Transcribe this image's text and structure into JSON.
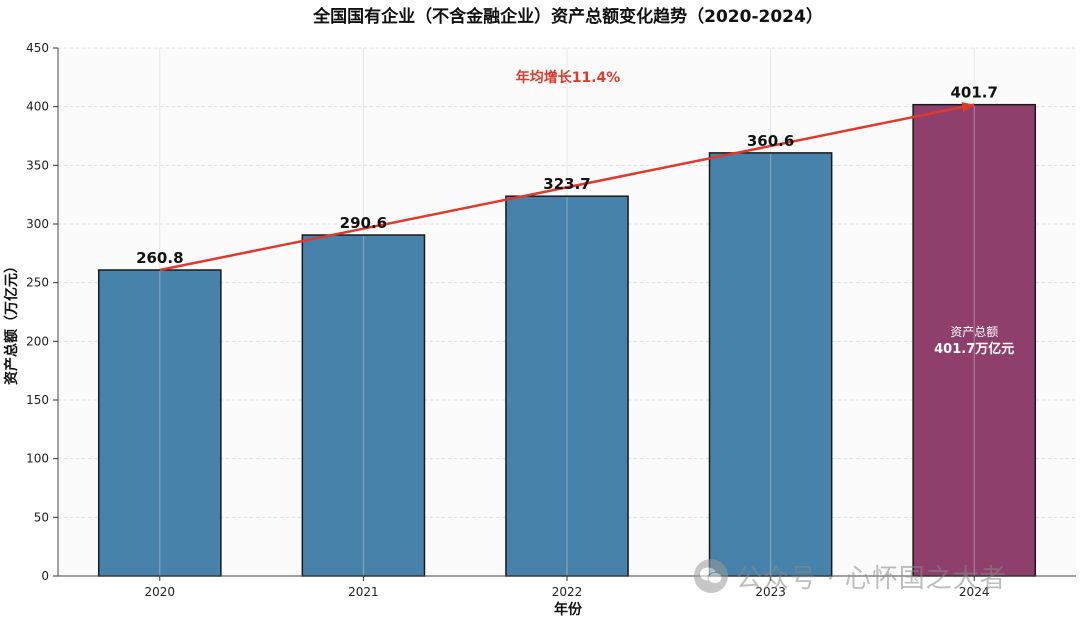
{
  "chart_data": {
    "type": "bar",
    "title": "全国国有企业（不含金融企业）资产总额变化趋势（2020-2024）",
    "xlabel": "年份",
    "ylabel": "资产总额（万亿元）",
    "categories": [
      "2020",
      "2021",
      "2022",
      "2023",
      "2024"
    ],
    "values": [
      260.8,
      290.6,
      323.7,
      360.6,
      401.7
    ],
    "data_labels": [
      "260.8",
      "290.6",
      "323.7",
      "360.6",
      "401.7"
    ],
    "ylim": [
      0,
      450
    ],
    "yticks": [
      0,
      50,
      100,
      150,
      200,
      250,
      300,
      350,
      400,
      450
    ],
    "grid": true,
    "colors": {
      "bar": "#4682a9",
      "highlight": "#8e3f6c",
      "trend": "#e03a2c"
    },
    "trend_annotation": "年均增长11.4%",
    "highlight_note": {
      "line1": "资产总额",
      "line2": "401.7万亿元"
    }
  },
  "watermark": {
    "text": "公众号 · 心怀国之大者",
    "icon": "wechat-icon"
  }
}
